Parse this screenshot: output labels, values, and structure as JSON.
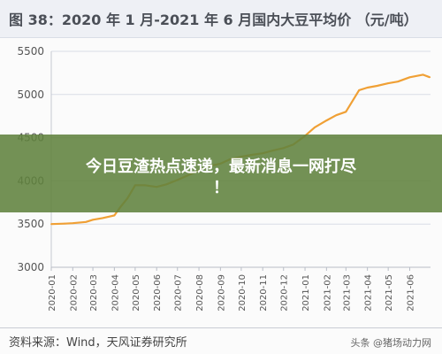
{
  "title": "图 38：2020 年 1 月-2021 年 6 月国内大豆平均价 （元/吨）",
  "overlay_headline": {
    "line1": "今日豆渣热点速递，最新消息一网打尽",
    "line2": "！"
  },
  "source": "资料来源：Wind，天风证券研究所",
  "watermark": "头条 @猪场动力网",
  "colors": {
    "line": "#f0a035",
    "grid": "#d9dde6",
    "overlay": "#60823e"
  },
  "chart_data": {
    "type": "line",
    "title": "图 38：2020 年 1 月-2021 年 6 月国内大豆平均价 （元/吨）",
    "xlabel": "",
    "ylabel": "",
    "ylim": [
      3000,
      5500
    ],
    "yticks": [
      3000,
      3500,
      4000,
      4500,
      5000,
      5500
    ],
    "xlim": [
      "2020-01-01",
      "2021-07-01"
    ],
    "xticks": [
      "2020-01",
      "2020-02",
      "2020-03",
      "2020-04",
      "2020-05",
      "2020-06",
      "2020-07",
      "2020-08",
      "2020-09",
      "2020-10",
      "2020-11",
      "2020-12",
      "2021-01",
      "2021-02",
      "2021-03",
      "2021-04",
      "2021-05",
      "2021-06"
    ],
    "grid": true,
    "legend": "none",
    "series": [
      {
        "color": "#f0a035",
        "points": [
          [
            "2020-01-01",
            3500
          ],
          [
            "2020-01-20",
            3505
          ],
          [
            "2020-02-01",
            3510
          ],
          [
            "2020-02-20",
            3525
          ],
          [
            "2020-03-01",
            3550
          ],
          [
            "2020-03-15",
            3570
          ],
          [
            "2020-04-01",
            3600
          ],
          [
            "2020-04-10",
            3700
          ],
          [
            "2020-04-20",
            3800
          ],
          [
            "2020-05-01",
            3950
          ],
          [
            "2020-05-15",
            3950
          ],
          [
            "2020-06-01",
            3930
          ],
          [
            "2020-06-15",
            3960
          ],
          [
            "2020-07-01",
            4010
          ],
          [
            "2020-07-15",
            4060
          ],
          [
            "2020-08-01",
            4120
          ],
          [
            "2020-08-15",
            4170
          ],
          [
            "2020-09-01",
            4200
          ],
          [
            "2020-09-15",
            4250
          ],
          [
            "2020-10-01",
            4280
          ],
          [
            "2020-10-15",
            4300
          ],
          [
            "2020-11-01",
            4320
          ],
          [
            "2020-11-15",
            4350
          ],
          [
            "2020-12-01",
            4380
          ],
          [
            "2020-12-15",
            4420
          ],
          [
            "2021-01-01",
            4520
          ],
          [
            "2021-01-15",
            4620
          ],
          [
            "2021-02-01",
            4700
          ],
          [
            "2021-02-15",
            4760
          ],
          [
            "2021-03-01",
            4800
          ],
          [
            "2021-03-20",
            5050
          ],
          [
            "2021-04-01",
            5080
          ],
          [
            "2021-04-15",
            5100
          ],
          [
            "2021-05-01",
            5130
          ],
          [
            "2021-05-15",
            5150
          ],
          [
            "2021-06-01",
            5200
          ],
          [
            "2021-06-20",
            5230
          ],
          [
            "2021-06-30",
            5200
          ]
        ]
      }
    ]
  }
}
